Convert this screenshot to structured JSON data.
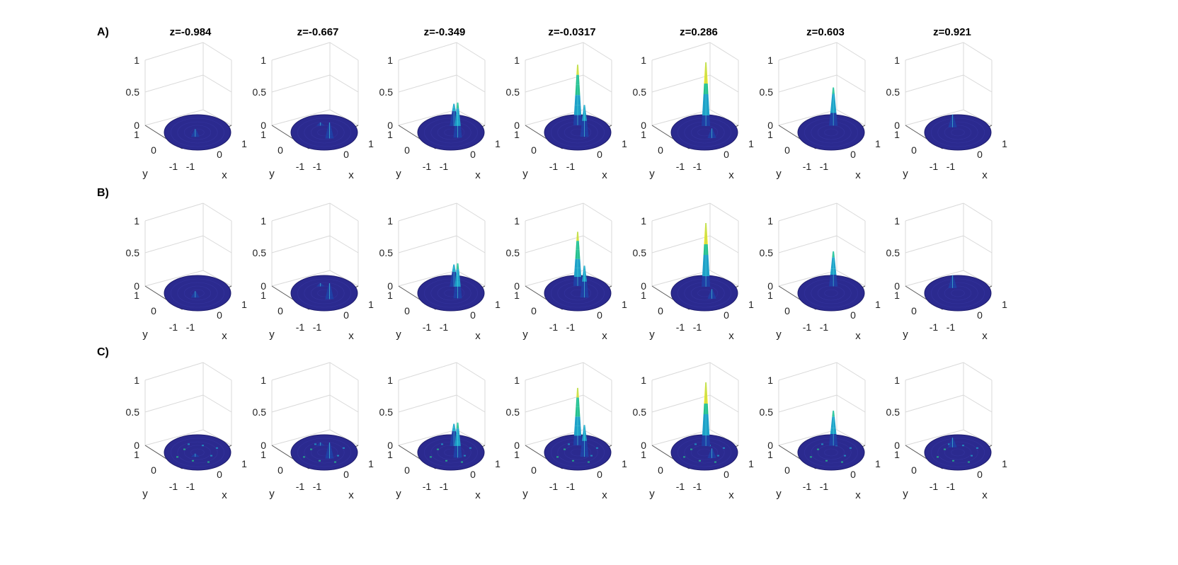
{
  "rows": [
    {
      "label": "A)",
      "smooth": true
    },
    {
      "label": "B)",
      "smooth": true
    },
    {
      "label": "C)",
      "smooth": false
    }
  ],
  "columns": [
    {
      "title": "z=-0.984"
    },
    {
      "title": "z=-0.667"
    },
    {
      "title": "z=-0.349"
    },
    {
      "title": "z=-0.0317"
    },
    {
      "title": "z=0.286"
    },
    {
      "title": "z=0.603"
    },
    {
      "title": "z=0.921"
    }
  ],
  "axes": {
    "xlabel": "x",
    "ylabel": "y",
    "z_ticks": [
      "0",
      "0.5",
      "1"
    ],
    "x_ticks": [
      "-1",
      "0",
      "1"
    ],
    "y_ticks": [
      "-1",
      "0",
      "1"
    ]
  },
  "colors": {
    "disk": "#2b2a8f",
    "disk_edge": "#1f1d6e",
    "low": "#1f3fa5",
    "mid": "#1fa0c8",
    "high": "#27c08a",
    "peak": "#f2e21c",
    "grid": "#d9d9d9",
    "axis": "#555555"
  },
  "chart_data": {
    "type": "surface",
    "zlim": [
      0,
      1
    ],
    "xlim": [
      -1,
      1
    ],
    "ylim": [
      -1,
      1
    ],
    "panels": [
      [
        {
          "row": "A)",
          "z": "z=-0.984",
          "peaks": [
            {
              "x": 0.2,
              "y": 0.35,
              "h": 0.12
            }
          ]
        },
        {
          "row": "A)",
          "z": "z=-0.667",
          "peaks": [
            {
              "x": 0.55,
              "y": 0.2,
              "h": 0.25
            },
            {
              "x": -0.55,
              "y": -0.3,
              "h": 0.05
            }
          ]
        },
        {
          "row": "A)",
          "z": "z=-0.349",
          "peaks": [
            {
              "x": -0.3,
              "y": -0.5,
              "h": 0.35
            },
            {
              "x": 0.55,
              "y": 0.1,
              "h": 0.55
            }
          ]
        },
        {
          "row": "A)",
          "z": "z=-0.0317",
          "peaks": [
            {
              "x": -0.45,
              "y": -0.45,
              "h": 0.95
            },
            {
              "x": 0.5,
              "y": 0.05,
              "h": 0.5
            }
          ]
        },
        {
          "row": "A)",
          "z": "z=0.286",
          "peaks": [
            {
              "x": -0.35,
              "y": -0.45,
              "h": 1.0
            },
            {
              "x": 0.6,
              "y": 0.1,
              "h": 0.15
            }
          ]
        },
        {
          "row": "A)",
          "z": "z=0.603",
          "peaks": [
            {
              "x": -0.35,
              "y": -0.5,
              "h": 0.6
            }
          ]
        },
        {
          "row": "A)",
          "z": "z=0.921",
          "peaks": [
            {
              "x": -0.5,
              "y": -0.15,
              "h": 0.2
            }
          ]
        }
      ],
      [
        {
          "row": "B)",
          "z": "z=-0.984",
          "peaks": [
            {
              "x": 0.2,
              "y": 0.35,
              "h": 0.1
            }
          ]
        },
        {
          "row": "B)",
          "z": "z=-0.667",
          "peaks": [
            {
              "x": 0.55,
              "y": 0.2,
              "h": 0.25
            },
            {
              "x": -0.55,
              "y": -0.3,
              "h": 0.05
            }
          ]
        },
        {
          "row": "B)",
          "z": "z=-0.349",
          "peaks": [
            {
              "x": -0.3,
              "y": -0.5,
              "h": 0.35
            },
            {
              "x": 0.55,
              "y": 0.1,
              "h": 0.55
            }
          ]
        },
        {
          "row": "B)",
          "z": "z=-0.0317",
          "peaks": [
            {
              "x": -0.45,
              "y": -0.45,
              "h": 0.85
            },
            {
              "x": 0.5,
              "y": 0.05,
              "h": 0.5
            }
          ]
        },
        {
          "row": "B)",
          "z": "z=0.286",
          "peaks": [
            {
              "x": -0.35,
              "y": -0.45,
              "h": 1.0
            },
            {
              "x": 0.6,
              "y": 0.1,
              "h": 0.15
            }
          ]
        },
        {
          "row": "B)",
          "z": "z=0.603",
          "peaks": [
            {
              "x": -0.35,
              "y": -0.5,
              "h": 0.55
            }
          ]
        },
        {
          "row": "B)",
          "z": "z=0.921",
          "peaks": [
            {
              "x": -0.5,
              "y": -0.15,
              "h": 0.2
            }
          ]
        }
      ],
      [
        {
          "row": "C)",
          "z": "z=-0.984",
          "peaks": [
            {
              "x": 0.2,
              "y": 0.35,
              "h": 0.05
            }
          ]
        },
        {
          "row": "C)",
          "z": "z=-0.667",
          "peaks": [
            {
              "x": 0.55,
              "y": 0.2,
              "h": 0.25
            },
            {
              "x": -0.55,
              "y": -0.3,
              "h": 0.05
            }
          ]
        },
        {
          "row": "C)",
          "z": "z=-0.349",
          "peaks": [
            {
              "x": -0.3,
              "y": -0.5,
              "h": 0.35
            },
            {
              "x": 0.55,
              "y": 0.1,
              "h": 0.55
            }
          ]
        },
        {
          "row": "C)",
          "z": "z=-0.0317",
          "peaks": [
            {
              "x": -0.45,
              "y": -0.45,
              "h": 0.9
            },
            {
              "x": 0.5,
              "y": 0.05,
              "h": 0.5
            }
          ]
        },
        {
          "row": "C)",
          "z": "z=0.286",
          "peaks": [
            {
              "x": -0.35,
              "y": -0.45,
              "h": 1.0
            },
            {
              "x": 0.6,
              "y": 0.1,
              "h": 0.15
            }
          ]
        },
        {
          "row": "C)",
          "z": "z=0.603",
          "peaks": [
            {
              "x": -0.35,
              "y": -0.5,
              "h": 0.55
            }
          ]
        },
        {
          "row": "C)",
          "z": "z=0.921",
          "peaks": [
            {
              "x": -0.5,
              "y": -0.15,
              "h": 0.15
            }
          ]
        }
      ]
    ]
  }
}
